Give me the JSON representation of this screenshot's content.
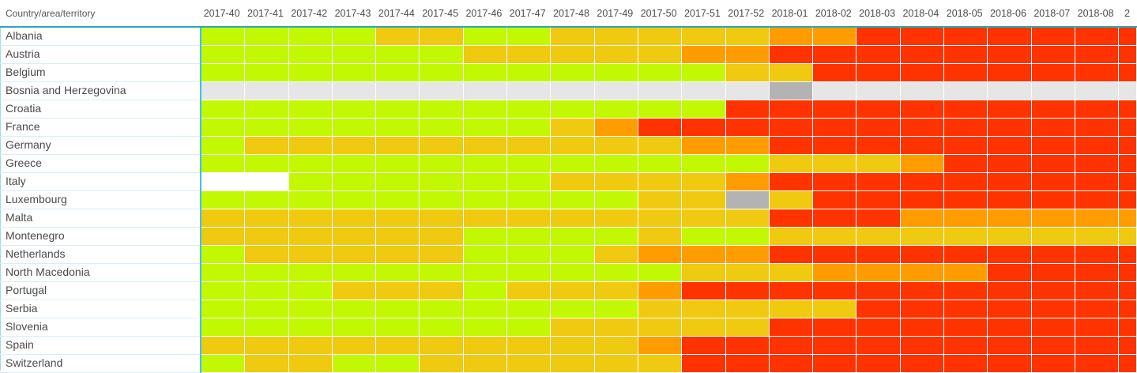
{
  "chart_data": {
    "type": "heatmap",
    "title": "",
    "corner_header": "Country/area/territory",
    "columns": [
      "2017-40",
      "2017-41",
      "2017-42",
      "2017-43",
      "2017-44",
      "2017-45",
      "2017-46",
      "2017-47",
      "2017-48",
      "2017-49",
      "2017-50",
      "2017-51",
      "2017-52",
      "2018-01",
      "2018-02",
      "2018-03",
      "2018-04",
      "2018-05",
      "2018-06",
      "2018-07",
      "2018-08",
      "2"
    ],
    "palette": {
      "g": "#c2f802",
      "y": "#f0c911",
      "o": "#ff9d00",
      "r": "#fe3300",
      "e": "#e6e6e6",
      "d": "#b3b3b3",
      "w": "#ffffff"
    },
    "palette_legend": {
      "g": "green",
      "y": "yellow",
      "o": "orange",
      "r": "red",
      "e": "gray-light",
      "d": "gray-dark",
      "w": "blank"
    },
    "rows": [
      {
        "country": "Albania",
        "cells": "ggggyyggyyyyyoorrrrrrr"
      },
      {
        "country": "Austria",
        "cells": "ggggggyyyyyoorrrrrrrrr"
      },
      {
        "country": "Belgium",
        "cells": "ggggggggggggyyrrrrrrrr"
      },
      {
        "country": "Bosnia and Herzegovina",
        "cells": "eeeeeeeeeeeeedeeeeeeee"
      },
      {
        "country": "Croatia",
        "cells": "ggggggggggggrrrrrrrrrr"
      },
      {
        "country": "France",
        "cells": "ggggggggyorrrrrrrrrrrr"
      },
      {
        "country": "Germany",
        "cells": "gyyyyyyyyyyoorrrrrrrrr"
      },
      {
        "country": "Greece",
        "cells": "gggggggggggggyyyorrrrr"
      },
      {
        "country": "Italy",
        "cells": "wwggggggyyyyorrrrrrrrr"
      },
      {
        "country": "Luxembourg",
        "cells": "ggggggggggyydyrrrrrrrr"
      },
      {
        "country": "Malta",
        "cells": "yyyyyyyyyyyyyrrroooooo"
      },
      {
        "country": "Montenegro",
        "cells": "yyyyyyggggyggyyyyyyyyy"
      },
      {
        "country": "Netherlands",
        "cells": "gyyyyygggyooorrrrrrrrr"
      },
      {
        "country": "North Macedonia",
        "cells": "gggggggggggyyyoooorrrr"
      },
      {
        "country": "Portugal",
        "cells": "gggyyygyyyorrrrrrrrrrr"
      },
      {
        "country": "Serbia",
        "cells": "ggggggggggyyyyyrrrrrrr"
      },
      {
        "country": "Slovenia",
        "cells": "ggggggggyyyyyrrrrrrrrr"
      },
      {
        "country": "Spain",
        "cells": "yyyyyyyyyyorrrrrrrrrrr"
      },
      {
        "country": "Switzerland",
        "cells": "gyyggyyyyyyrrrrrrrrrrr"
      }
    ]
  },
  "accents": {
    "header_underline": "#2ba7b5",
    "label_cells_divider": "#3ec5e0",
    "label_separator": "#d9edf8",
    "left_edge_line": "#9adbe8",
    "header_text": "#4c4c4c",
    "label_text": "#4a4a4a"
  }
}
